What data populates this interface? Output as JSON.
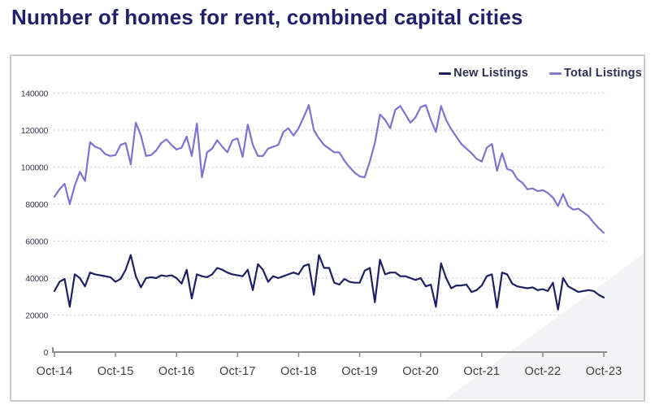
{
  "title": "Number of homes for rent, combined capital cities",
  "legend": {
    "items": [
      {
        "label": "New Listings",
        "color": "#1f1f64"
      },
      {
        "label": "Total Listings",
        "color": "#8a7ad4"
      }
    ]
  },
  "colors": {
    "title": "#20206b",
    "panel_border": "#c9c9ce",
    "gridline": "#d7d7d7",
    "axis": "#8c8c8c",
    "tick_label": "#3e3e3e",
    "y_label": "#3a3a4e",
    "watermark": "#f3f3f5",
    "new_listings_line": "#1f1f64",
    "total_listings_line": "#8171d1"
  },
  "chart_data": {
    "type": "line",
    "title": "Number of homes for rent, combined capital cities",
    "x_tick_labels": [
      "Oct-14",
      "Oct-15",
      "Oct-16",
      "Oct-17",
      "Oct-18",
      "Oct-19",
      "Oct-20",
      "Oct-21",
      "Oct-22",
      "Oct-23"
    ],
    "x_resolution": "monthly",
    "x_range": [
      "Oct-14",
      "Oct-23"
    ],
    "y_ticks": [
      0,
      20000,
      40000,
      60000,
      80000,
      100000,
      120000,
      140000
    ],
    "ylim": [
      0,
      140000
    ],
    "grid": "horizontal-dotted",
    "legend_position": "top-right",
    "series": [
      {
        "name": "New Listings",
        "color": "#1f1f64",
        "values": [
          33000,
          38000,
          39500,
          24500,
          42000,
          40000,
          35500,
          43000,
          42000,
          41500,
          41000,
          40500,
          38000,
          39500,
          44500,
          52500,
          41000,
          35000,
          40000,
          40500,
          40000,
          41500,
          41000,
          41500,
          40000,
          37000,
          44500,
          29000,
          42000,
          41000,
          40500,
          42000,
          45500,
          44500,
          43000,
          42000,
          41500,
          41000,
          44500,
          33500,
          47500,
          44500,
          38000,
          41000,
          40000,
          41000,
          42000,
          43000,
          42000,
          46500,
          47500,
          31000,
          52500,
          45500,
          45500,
          37500,
          36500,
          39500,
          38000,
          37500,
          37500,
          44000,
          45500,
          27000,
          50000,
          42000,
          43000,
          43000,
          41000,
          41000,
          40000,
          39000,
          40000,
          35500,
          36500,
          24500,
          48000,
          40000,
          34500,
          36000,
          36000,
          36500,
          32500,
          33500,
          36000,
          41000,
          42000,
          24000,
          43000,
          42000,
          37000,
          35500,
          35000,
          34500,
          35000,
          33500,
          34000,
          33000,
          37500,
          23000,
          40000,
          35500,
          34000,
          32500,
          33000,
          33500,
          33000,
          31000,
          29500
        ]
      },
      {
        "name": "Total Listings",
        "color": "#8171d1",
        "values": [
          84000,
          88000,
          91000,
          80000,
          90000,
          97500,
          92500,
          113500,
          111000,
          110000,
          107000,
          106000,
          106500,
          112000,
          113000,
          101500,
          124000,
          117000,
          106000,
          106500,
          109000,
          113000,
          115000,
          112000,
          109500,
          110500,
          116500,
          106000,
          123500,
          94500,
          108000,
          110000,
          114500,
          111000,
          108000,
          114500,
          115500,
          105500,
          123000,
          112000,
          106000,
          106000,
          110000,
          111000,
          112000,
          119000,
          121000,
          117000,
          121000,
          127000,
          133500,
          120000,
          115500,
          112000,
          110000,
          108000,
          108000,
          103500,
          100000,
          97000,
          95000,
          94500,
          103000,
          113000,
          128500,
          125500,
          121000,
          131000,
          133000,
          128500,
          124000,
          127000,
          132500,
          133500,
          125500,
          119000,
          133000,
          125500,
          120500,
          116500,
          112500,
          110000,
          107500,
          104500,
          103000,
          110500,
          112500,
          98000,
          107500,
          99000,
          98000,
          93500,
          91500,
          88000,
          88500,
          87000,
          87500,
          86000,
          83500,
          79000,
          85500,
          79000,
          77000,
          77500,
          75500,
          73500,
          70000,
          67000,
          64500
        ]
      }
    ]
  }
}
